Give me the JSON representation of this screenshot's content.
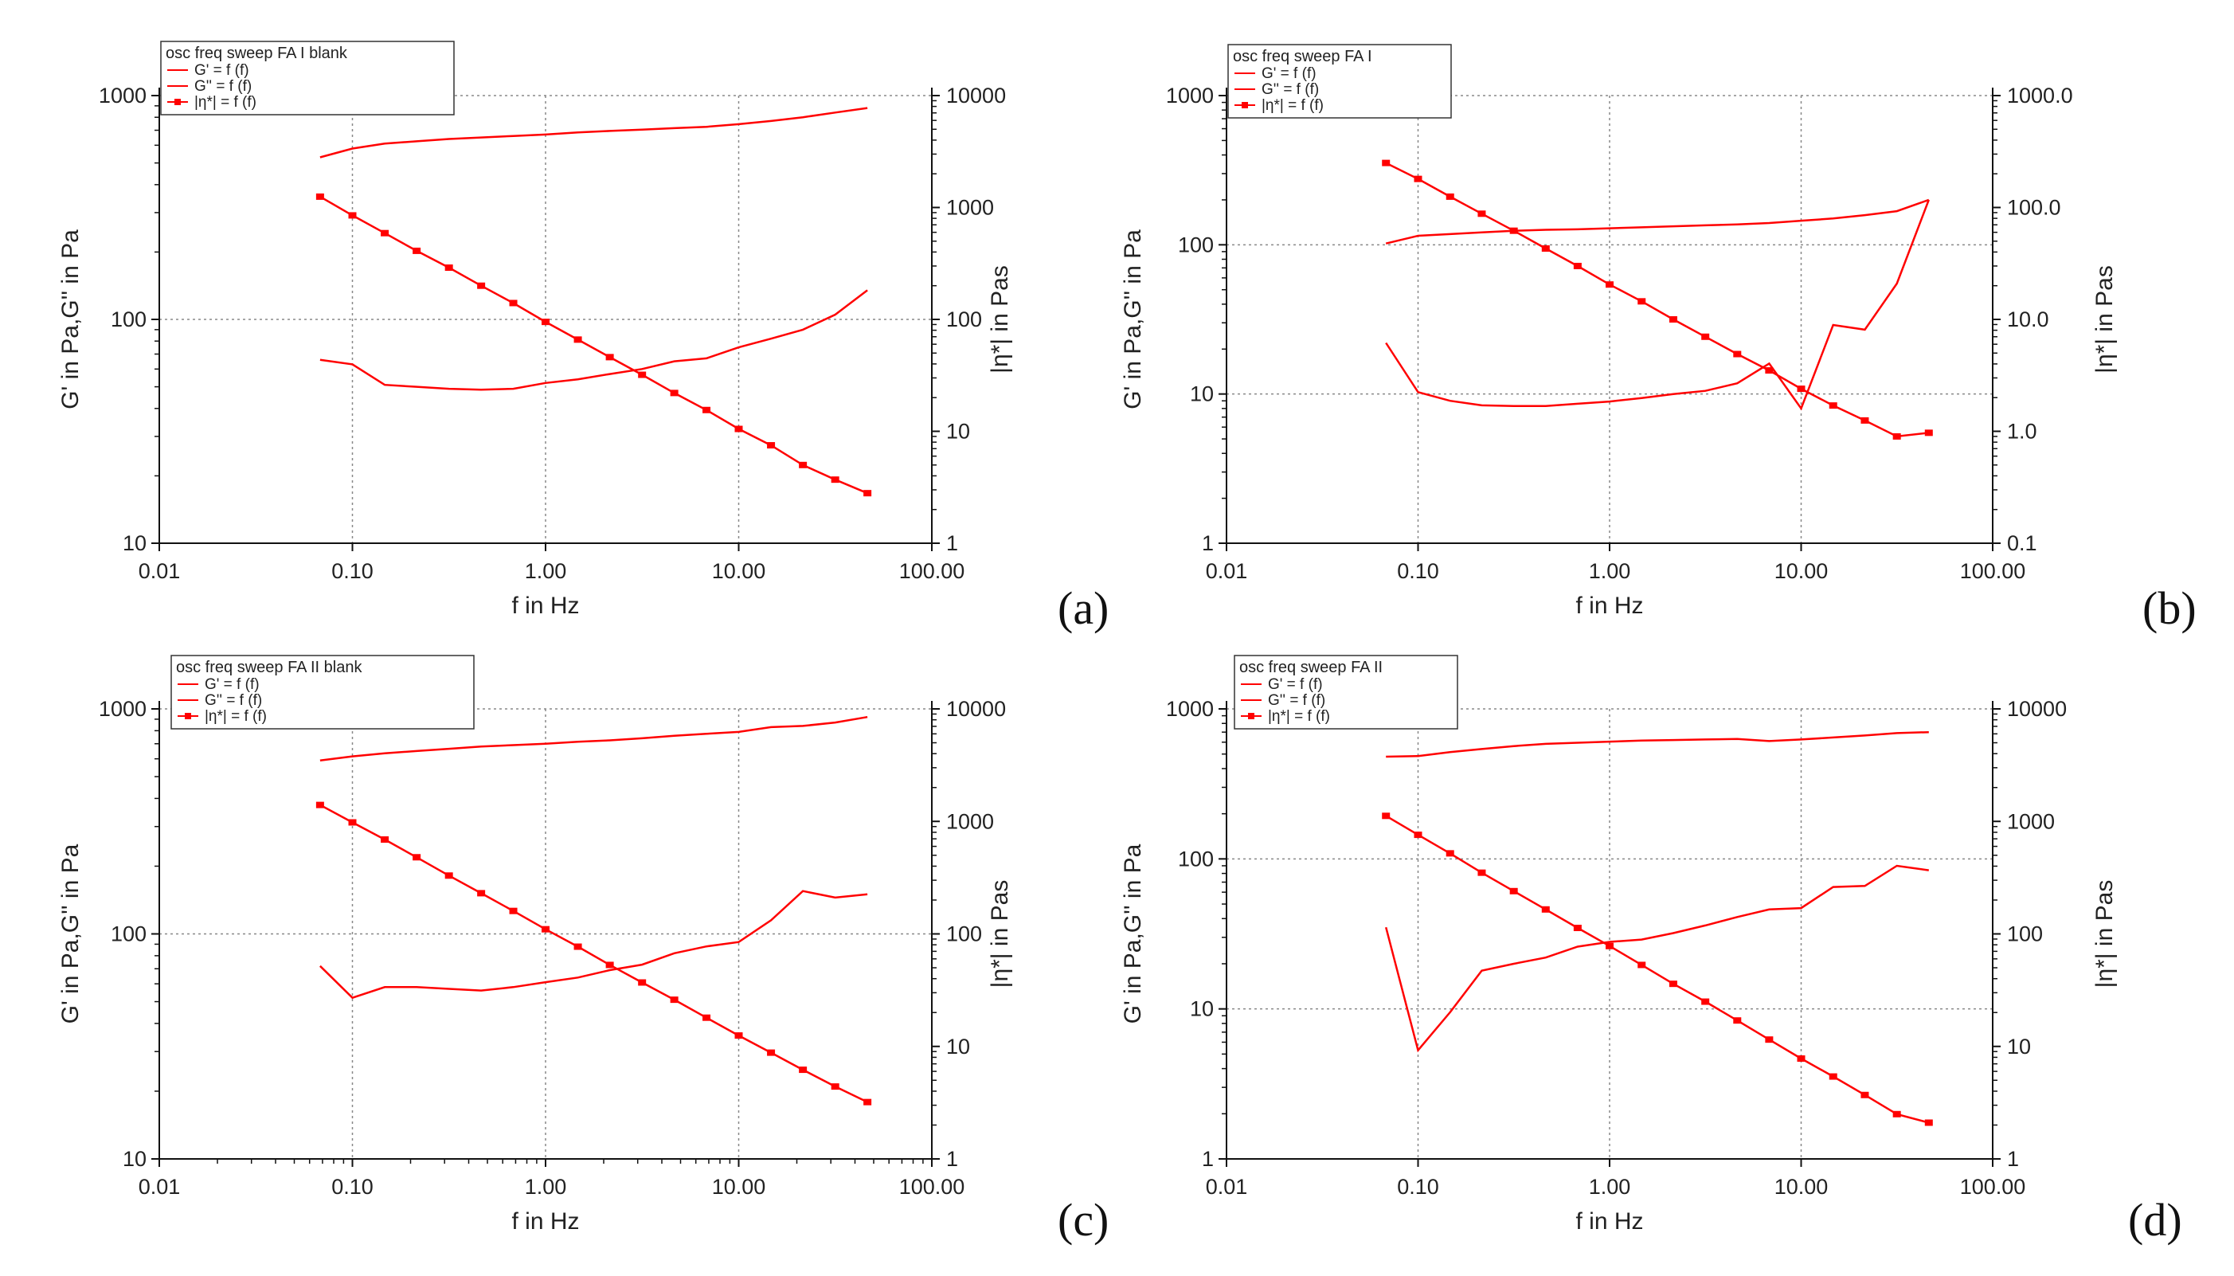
{
  "chart_data": [
    {
      "type": "line",
      "panel_label": "(a)",
      "legend_title": "osc freq sweep FA I blank",
      "legend": [
        "G' = f (f)",
        "G'' = f (f)",
        "|η*| = f (f)"
      ],
      "xlabel": "f in Hz",
      "ylabel_left": "G' in Pa,G'' in Pa",
      "ylabel_right": "|η*| in Pas",
      "xlim": [
        0.01,
        100
      ],
      "ylim_left": [
        10,
        1000
      ],
      "ylim_right": [
        1,
        10000
      ],
      "x_ticks": [
        "0.01",
        "0.10",
        "1.00",
        "10.00",
        "100.00"
      ],
      "yl_ticks": [
        "10",
        "100",
        "1000"
      ],
      "yr_ticks": [
        "1",
        "10",
        "100",
        "1000",
        "10000"
      ],
      "x_minor_ticks": false,
      "series": [
        {
          "name": "G' = f (f)",
          "axis": "left",
          "markers": false,
          "x": [
            0.068,
            0.1,
            0.147,
            0.215,
            0.316,
            0.464,
            0.681,
            1,
            1.47,
            2.15,
            3.16,
            4.64,
            6.81,
            10,
            14.7,
            21.5,
            31.6,
            46.4
          ],
          "y": [
            530,
            580,
            610,
            625,
            640,
            650,
            660,
            670,
            685,
            695,
            705,
            715,
            725,
            745,
            770,
            800,
            840,
            880
          ]
        },
        {
          "name": "G'' = f (f)",
          "axis": "left",
          "markers": false,
          "x": [
            0.068,
            0.1,
            0.147,
            0.215,
            0.316,
            0.464,
            0.681,
            1,
            1.47,
            2.15,
            3.16,
            4.64,
            6.81,
            10,
            14.7,
            21.5,
            31.6,
            46.4
          ],
          "y": [
            66,
            63,
            51,
            50,
            49,
            48.5,
            49,
            52,
            54,
            57,
            60,
            65,
            67,
            75,
            82,
            90,
            105,
            135
          ]
        },
        {
          "name": "|η*| = f (f)",
          "axis": "right",
          "markers": true,
          "x": [
            0.068,
            0.1,
            0.147,
            0.215,
            0.316,
            0.464,
            0.681,
            1,
            1.47,
            2.15,
            3.16,
            4.64,
            6.81,
            10,
            14.7,
            21.5,
            31.6,
            46.4
          ],
          "y": [
            1250,
            850,
            590,
            410,
            290,
            200,
            140,
            95,
            66,
            46,
            32,
            22,
            15.5,
            10.5,
            7.5,
            5,
            3.7,
            2.8
          ]
        }
      ]
    },
    {
      "type": "line",
      "panel_label": "(b)",
      "legend_title": "osc freq sweep FA I",
      "legend": [
        "G' = f (f)",
        "G'' = f (f)",
        "|η*| = f (f)"
      ],
      "xlabel": "f in Hz",
      "ylabel_left": "G' in Pa,G'' in Pa",
      "ylabel_right": "|η*| in Pas",
      "xlim": [
        0.01,
        100
      ],
      "ylim_left": [
        1,
        1000
      ],
      "ylim_right": [
        0.1,
        1000
      ],
      "x_ticks": [
        "0.01",
        "0.10",
        "1.00",
        "10.00",
        "100.00"
      ],
      "yl_ticks": [
        "1",
        "10",
        "100",
        "1000"
      ],
      "yr_ticks": [
        "0.1",
        "1.0",
        "10.0",
        "100.0",
        "1000.0"
      ],
      "x_minor_ticks": false,
      "series": [
        {
          "name": "G' = f (f)",
          "axis": "left",
          "markers": false,
          "x": [
            0.068,
            0.1,
            0.147,
            0.215,
            0.316,
            0.464,
            0.681,
            1,
            1.47,
            2.15,
            3.16,
            4.64,
            6.81,
            10,
            14.7,
            21.5,
            31.6,
            46.4
          ],
          "y": [
            102,
            115,
            118,
            121,
            124,
            126,
            127,
            129,
            131,
            133,
            135,
            137,
            140,
            145,
            150,
            158,
            168,
            200
          ]
        },
        {
          "name": "G'' = f (f)",
          "axis": "left",
          "markers": false,
          "x": [
            0.068,
            0.1,
            0.147,
            0.215,
            0.316,
            0.464,
            0.681,
            1,
            1.47,
            2.15,
            3.16,
            4.64,
            6.81,
            10,
            14.7,
            21.5,
            31.6,
            46.4
          ],
          "y": [
            22,
            10.3,
            9.0,
            8.4,
            8.3,
            8.3,
            8.6,
            8.9,
            9.4,
            10.0,
            10.5,
            11.8,
            16.0,
            8.0,
            29,
            27,
            55,
            200
          ]
        },
        {
          "name": "|η*| = f (f)",
          "axis": "right",
          "markers": true,
          "x": [
            0.068,
            0.1,
            0.147,
            0.215,
            0.316,
            0.464,
            0.681,
            1,
            1.47,
            2.15,
            3.16,
            4.64,
            6.81,
            10,
            14.7,
            21.5,
            31.6,
            46.4
          ],
          "y": [
            250,
            180,
            125,
            88,
            62,
            43,
            30,
            20.5,
            14.5,
            10.0,
            7.0,
            4.9,
            3.5,
            2.4,
            1.7,
            1.25,
            0.9,
            0.97
          ]
        }
      ]
    },
    {
      "type": "line",
      "panel_label": "(c)",
      "legend_title": "osc freq sweep FA II blank",
      "legend": [
        "G' = f (f)",
        "G'' = f (f)",
        "|η*| = f (f)"
      ],
      "xlabel": "f in Hz",
      "ylabel_left": "G' in Pa,G'' in Pa",
      "ylabel_right": "|η*| in Pas",
      "xlim": [
        0.01,
        100
      ],
      "ylim_left": [
        10,
        1000
      ],
      "ylim_right": [
        1,
        10000
      ],
      "x_ticks": [
        "0.01",
        "0.10",
        "1.00",
        "10.00",
        "100.00"
      ],
      "yl_ticks": [
        "10",
        "100",
        "1000"
      ],
      "yr_ticks": [
        "1",
        "10",
        "100",
        "1000",
        "10000"
      ],
      "x_minor_ticks": true,
      "series": [
        {
          "name": "G' = f (f)",
          "axis": "left",
          "markers": false,
          "x": [
            0.068,
            0.1,
            0.147,
            0.215,
            0.316,
            0.464,
            0.681,
            1,
            1.47,
            2.15,
            3.16,
            4.64,
            6.81,
            10,
            14.7,
            21.5,
            31.6,
            46.4
          ],
          "y": [
            590,
            615,
            635,
            650,
            665,
            680,
            690,
            700,
            715,
            725,
            740,
            760,
            775,
            790,
            830,
            840,
            870,
            920
          ]
        },
        {
          "name": "G'' = f (f)",
          "axis": "left",
          "markers": false,
          "x": [
            0.068,
            0.1,
            0.147,
            0.215,
            0.316,
            0.464,
            0.681,
            1,
            1.47,
            2.15,
            3.16,
            4.64,
            6.81,
            10,
            14.7,
            21.5,
            31.6,
            46.4
          ],
          "y": [
            72,
            52,
            58,
            58,
            57,
            56,
            58,
            61,
            64,
            69,
            73,
            82,
            88,
            92,
            115,
            155,
            145,
            150
          ]
        },
        {
          "name": "|η*| = f (f)",
          "axis": "right",
          "markers": true,
          "x": [
            0.068,
            0.1,
            0.147,
            0.215,
            0.316,
            0.464,
            0.681,
            1,
            1.47,
            2.15,
            3.16,
            4.64,
            6.81,
            10,
            14.7,
            21.5,
            31.6,
            46.4
          ],
          "y": [
            1400,
            980,
            690,
            480,
            330,
            230,
            160,
            110,
            77,
            53,
            37,
            26,
            18,
            12.5,
            8.8,
            6.2,
            4.4,
            3.2
          ]
        }
      ]
    },
    {
      "type": "line",
      "panel_label": "(d)",
      "legend_title": "osc freq sweep FA II",
      "legend": [
        "G' = f (f)",
        "G'' = f (f)",
        "|η*| = f (f)"
      ],
      "xlabel": "f in Hz",
      "ylabel_left": "G' in Pa,G'' in Pa",
      "ylabel_right": "|η*| in Pas",
      "xlim": [
        0.01,
        100
      ],
      "ylim_left": [
        1,
        1000
      ],
      "ylim_right": [
        1,
        10000
      ],
      "x_ticks": [
        "0.01",
        "0.10",
        "1.00",
        "10.00",
        "100.00"
      ],
      "yl_ticks": [
        "1",
        "10",
        "100",
        "1000"
      ],
      "yr_ticks": [
        "1",
        "10",
        "100",
        "1000",
        "10000"
      ],
      "x_minor_ticks": false,
      "series": [
        {
          "name": "G' = f (f)",
          "axis": "left",
          "markers": false,
          "x": [
            0.068,
            0.1,
            0.147,
            0.215,
            0.316,
            0.464,
            0.681,
            1,
            1.47,
            2.15,
            3.16,
            4.64,
            6.81,
            10,
            14.7,
            21.5,
            31.6,
            46.4
          ],
          "y": [
            480,
            485,
            515,
            540,
            565,
            585,
            595,
            605,
            615,
            620,
            625,
            630,
            610,
            625,
            645,
            665,
            690,
            700
          ]
        },
        {
          "name": "G'' = f (f)",
          "axis": "left",
          "markers": false,
          "x": [
            0.068,
            0.1,
            0.147,
            0.215,
            0.316,
            0.464,
            0.681,
            1,
            1.47,
            2.15,
            3.16,
            4.64,
            6.81,
            10,
            14.7,
            21.5,
            31.6,
            46.4
          ],
          "y": [
            35,
            5.3,
            9.5,
            18,
            20,
            22,
            26,
            28,
            29,
            32,
            36,
            41,
            46,
            47,
            65,
            66,
            90,
            84
          ]
        },
        {
          "name": "|η*| = f (f)",
          "axis": "right",
          "markers": true,
          "x": [
            0.068,
            0.1,
            0.147,
            0.215,
            0.316,
            0.464,
            0.681,
            1,
            1.47,
            2.15,
            3.16,
            4.64,
            6.81,
            10,
            14.7,
            21.5,
            31.6,
            46.4
          ],
          "y": [
            1120,
            760,
            520,
            350,
            240,
            165,
            113,
            78,
            53,
            36,
            25,
            17,
            11.5,
            7.8,
            5.4,
            3.7,
            2.5,
            2.1
          ]
        }
      ]
    }
  ],
  "style": {
    "series_color": "#ff0000",
    "grid_color": "#888888",
    "axis_color": "#111111"
  }
}
